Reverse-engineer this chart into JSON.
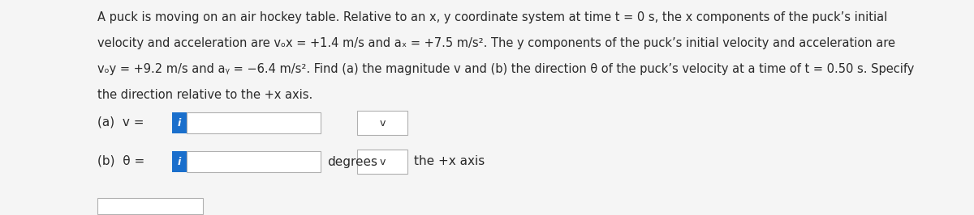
{
  "background_color": "#e8e8e8",
  "content_bg": "#f5f5f5",
  "text_color": "#1a1a1a",
  "dark_text": "#2a2a2a",
  "line1": "A puck is moving on an air hockey table. Relative to an x, y coordinate system at time t = 0 s, the x components of the puck’s initial",
  "line2": "velocity and acceleration are vₒx = +1.4 m/s and aₓ = +7.5 m/s². The y components of the puck’s initial velocity and acceleration are",
  "line3": "vₒy = +9.2 m/s and aᵧ = −6.4 m/s². Find (a) the magnitude v and (b) the direction θ of the puck’s velocity at a time of t = 0.50 s. Specify",
  "line4": "the direction relative to the +x axis.",
  "label_a": "(a)  v =",
  "label_b": "(b)  θ =",
  "degrees_label": "degrees",
  "axis_label": "the +x axis",
  "input_box_color": "#ffffff",
  "input_box_border": "#b0b0b0",
  "info_button_color": "#1a6fcc",
  "info_button_text": "i",
  "chevron": "v",
  "para_fontsize": 10.5,
  "label_fontsize": 11
}
